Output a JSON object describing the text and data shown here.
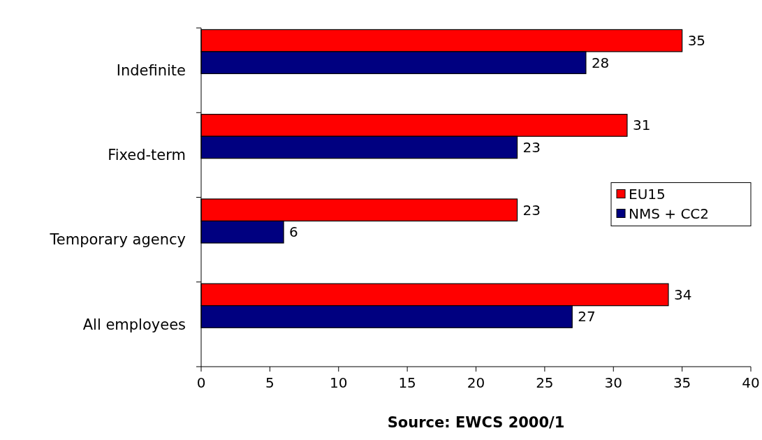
{
  "chart_data": {
    "type": "bar",
    "orientation": "horizontal",
    "xlabel": "Source: EWCS 2000/1",
    "categories": [
      "Indefinite",
      "Fixed-term",
      "Temporary agency",
      "All employees"
    ],
    "series": [
      {
        "name": "EU15",
        "color": "#ff0000",
        "values": [
          35,
          31,
          23,
          34
        ]
      },
      {
        "name": "NMS + CC2",
        "color": "#000080",
        "values": [
          28,
          23,
          6,
          27
        ]
      }
    ],
    "xlim": [
      0,
      40
    ],
    "xticks": [
      0,
      5,
      10,
      15,
      20,
      25,
      30,
      35,
      40
    ],
    "data_labels": true,
    "legend": "right",
    "grid": false
  }
}
